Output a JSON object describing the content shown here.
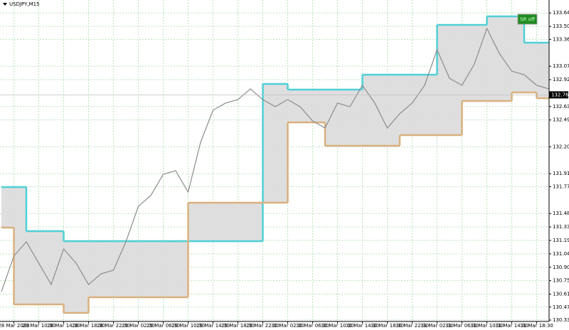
{
  "chart_data": {
    "type": "line",
    "title": "USDJPY,M15",
    "categories": [
      null,
      "28 Mar 2023",
      null,
      "28 Mar 10:30",
      null,
      "28 Mar 14:30",
      null,
      "28 Mar 18:30",
      null,
      "28 Mar 22:30",
      null,
      "29 Mar 02:30",
      null,
      "29 Mar 06:30",
      null,
      "29 Mar 10:30",
      null,
      "29 Mar 14:30",
      null,
      "29 Mar 18:30",
      null,
      "29 Mar 22:30",
      null,
      "30 Mar 02:30",
      null,
      "30 Mar 06:30",
      null,
      "30 Mar 10:30",
      null,
      "30 Mar 14:30",
      null,
      "30 Mar 18:30",
      null,
      "30 Mar 22:30",
      null,
      "31 Mar 02:30",
      null,
      "31 Mar 06:30",
      null,
      "31 Mar 10:30",
      null,
      "31 Mar 14:30",
      null,
      "31 Mar 18:30",
      null
    ],
    "series": [
      {
        "color": "#8c8c8c",
        "values": [
          130.637,
          131.021,
          131.175,
          130.944,
          130.714,
          131.098,
          130.944,
          130.714,
          130.829,
          130.868,
          131.175,
          131.558,
          131.674,
          131.904,
          131.942,
          131.712,
          132.249,
          132.595,
          132.672,
          132.71,
          132.825,
          132.71,
          132.633,
          132.71,
          132.633,
          132.48,
          132.403,
          132.672,
          132.633,
          132.864,
          132.672,
          132.403,
          132.557,
          132.672,
          132.864,
          133.248,
          132.94,
          132.864,
          133.094,
          133.478,
          133.209,
          133.017,
          132.979,
          132.864,
          132.825
        ]
      },
      {
        "color": "#4fd0d6",
        "values": [
          131.766,
          131.766,
          131.29,
          131.29,
          131.29,
          131.182,
          131.182,
          131.182,
          131.182,
          131.182,
          131.182,
          131.182,
          131.182,
          131.182,
          131.182,
          131.182,
          131.182,
          131.182,
          131.182,
          131.182,
          131.182,
          132.879,
          132.879,
          132.818,
          132.818,
          132.818,
          132.818,
          132.818,
          132.818,
          132.979,
          132.979,
          132.979,
          132.979,
          132.979,
          132.979,
          133.516,
          133.516,
          133.516,
          133.516,
          133.608,
          133.608,
          133.608,
          133.324,
          133.324,
          133.324
        ]
      },
      {
        "color": "#d9b07e",
        "values": [
          131.328,
          130.499,
          130.499,
          130.499,
          130.499,
          130.407,
          130.407,
          130.576,
          130.576,
          130.576,
          130.576,
          130.576,
          130.576,
          130.576,
          130.576,
          131.597,
          131.597,
          131.597,
          131.597,
          131.597,
          131.597,
          131.597,
          131.597,
          132.464,
          132.464,
          132.464,
          132.211,
          132.211,
          132.211,
          132.211,
          132.211,
          132.211,
          132.326,
          132.326,
          132.326,
          132.326,
          132.326,
          132.695,
          132.695,
          132.695,
          132.695,
          132.787,
          132.787,
          132.725,
          132.725
        ]
      }
    ],
    "last_price": 132.761,
    "button": "SR off",
    "ylim": [
      130.315,
      133.785
    ],
    "yticks": [
      133.645,
      {
        "value": 133.5,
        "label": "133.500"
      },
      {
        "value": 133.36,
        "label": "133.360"
      },
      {
        "value": 133.07,
        "label": "133.070"
      },
      132.925,
      132.635,
      {
        "value": 132.49,
        "label": "132.490"
      },
      {
        "value": 132.2,
        "label": "132.200"
      },
      {
        "value": 131.91,
        "label": "131.910"
      },
      {
        "value": 131.77,
        "label": "131.770"
      },
      {
        "value": 131.48,
        "label": "131.480"
      },
      131.335,
      {
        "value": 131.19,
        "label": "131.190"
      },
      131.045,
      {
        "value": 130.9,
        "label": "130.900"
      },
      130.755,
      {
        "value": 130.61,
        "label": "130.610"
      },
      {
        "value": 130.47,
        "label": "130.470"
      },
      {
        "value": 130.33,
        "label": "130.330"
      }
    ],
    "grid": true
  }
}
